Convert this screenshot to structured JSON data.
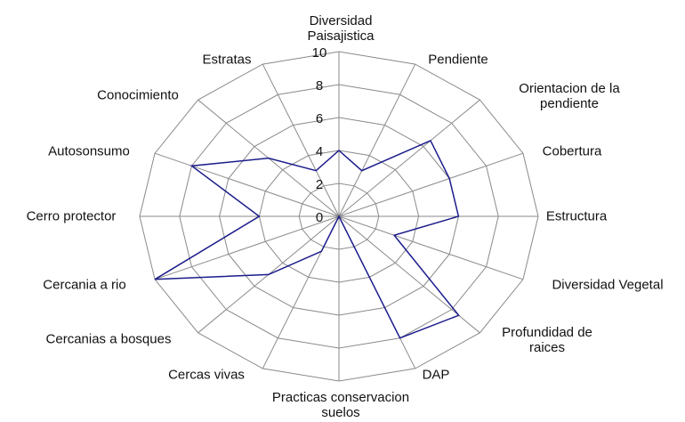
{
  "chart_data": {
    "type": "radar",
    "categories": [
      "Diversidad Paisajistica",
      "Pendiente",
      "Orientacion de la pendiente",
      "Cobertura",
      "Estructura",
      "Diversidad Vegetal",
      "Profundidad de raices",
      "DAP",
      "Practicas conservacion suelos",
      "Cercas vivas",
      "Cercanias a bosques",
      "Cercania a rio",
      "Cerro protector",
      "Autosonsumo",
      "Conocimiento",
      "Estratas"
    ],
    "series": [
      {
        "color": "#1c1c8c",
        "values": [
          4,
          3,
          6.5,
          6,
          6,
          3,
          8.5,
          8,
          0,
          2.3,
          5,
          10,
          4,
          8,
          5,
          3
        ]
      }
    ],
    "rlim": [
      0,
      10
    ],
    "rticks": [
      0,
      2,
      4,
      6,
      8,
      10
    ],
    "grid": true
  }
}
